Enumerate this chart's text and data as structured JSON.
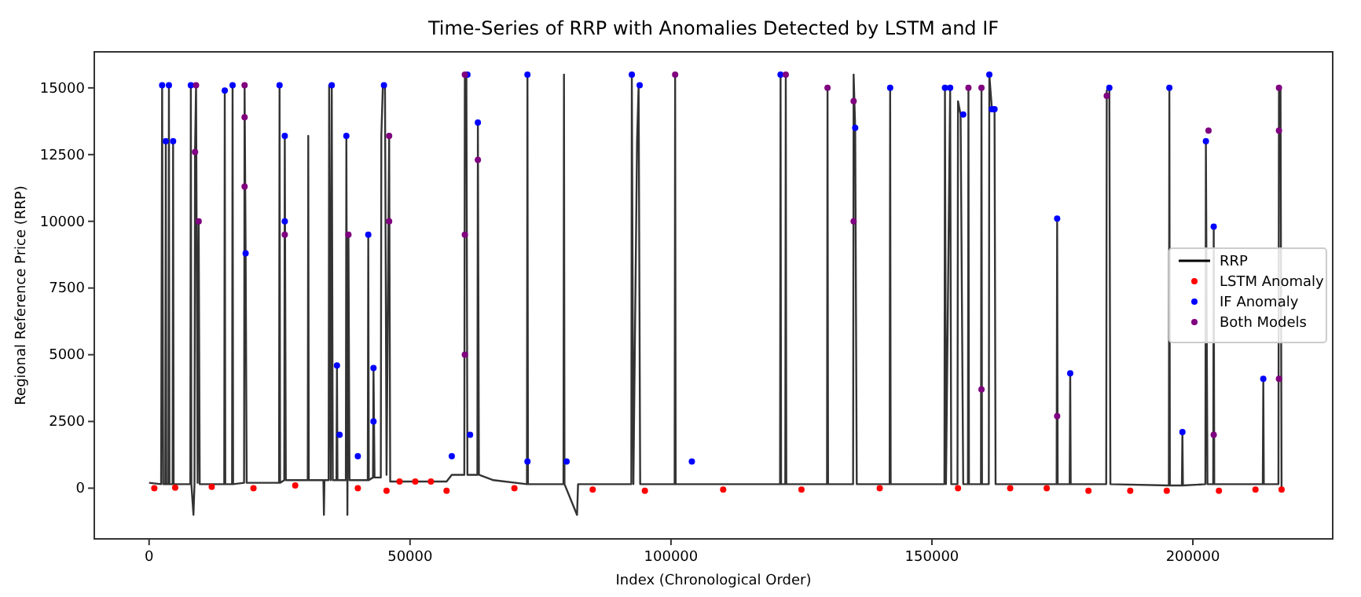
{
  "chart_data": {
    "type": "line",
    "title": "Time-Series of RRP with Anomalies Detected by LSTM and IF",
    "xlabel": "Index (Chronological Order)",
    "ylabel": "Regional Reference Price (RRP)",
    "xlim": [
      -10500,
      226800
    ],
    "xticks": [
      0,
      50000,
      100000,
      150000,
      200000
    ],
    "ylim": [
      -1900,
      16350
    ],
    "yticks": [
      0,
      2500,
      5000,
      7500,
      10000,
      12500,
      15000
    ],
    "legend": "center right",
    "grid": false,
    "series": [
      {
        "name": "RRP",
        "color": "#000000",
        "x": [
          0,
          2300,
          2500,
          2700,
          3100,
          3200,
          3300,
          3700,
          3800,
          3900,
          4500,
          4600,
          4700,
          7900,
          8000,
          8100,
          8500,
          8700,
          8800,
          9000,
          9300,
          9500,
          9700,
          14400,
          14500,
          14600,
          15900,
          16000,
          16100,
          18200,
          18300,
          18500,
          18700,
          24900,
          25000,
          25100,
          25900,
          26000,
          26200,
          30400,
          30500,
          30600,
          33400,
          33500,
          33600,
          34400,
          34500,
          34800,
          35000,
          35200,
          35900,
          36000,
          36100,
          37700,
          37800,
          38000,
          38200,
          38400,
          41900,
          42000,
          42100,
          42900,
          43000,
          43200,
          44400,
          44500,
          44800,
          45200,
          45500,
          46000,
          46200,
          57000,
          58000,
          60400,
          60500,
          60800,
          61000,
          62900,
          63000,
          63200,
          66000,
          72400,
          72500,
          72600,
          79400,
          79500,
          79600,
          82000,
          82200,
          92400,
          92500,
          92800,
          93500,
          93800,
          94100,
          100700,
          100800,
          100900,
          120900,
          121000,
          121100,
          121900,
          122000,
          122100,
          129900,
          130000,
          130100,
          134900,
          135000,
          135300,
          135600,
          141900,
          142000,
          142100,
          152400,
          152500,
          152700,
          153500,
          153700,
          154900,
          155000,
          155500,
          156000,
          156900,
          157000,
          157100,
          159400,
          159500,
          159600,
          160900,
          161000,
          161500,
          162000,
          162200,
          173900,
          174000,
          174100,
          176400,
          176500,
          176600,
          183400,
          183500,
          184000,
          184200,
          195400,
          195500,
          195600,
          197900,
          198000,
          198100,
          202400,
          202500,
          202800,
          203900,
          204000,
          204100,
          213400,
          213500,
          213600,
          216400,
          216500,
          216800,
          217000
        ],
        "values": [
          200,
          150,
          15100,
          150,
          150,
          13000,
          150,
          150,
          15100,
          150,
          150,
          13000,
          150,
          150,
          15100,
          150,
          -1000,
          150,
          12600,
          15100,
          200,
          10000,
          150,
          150,
          14900,
          150,
          150,
          15100,
          150,
          200,
          15100,
          8800,
          200,
          200,
          15100,
          200,
          300,
          13200,
          300,
          300,
          13200,
          300,
          300,
          -1000,
          300,
          300,
          15100,
          300,
          15100,
          300,
          300,
          4600,
          300,
          300,
          13200,
          -1000,
          9500,
          300,
          300,
          9500,
          300,
          400,
          4500,
          400,
          400,
          13200,
          15100,
          15100,
          500,
          13200,
          250,
          250,
          500,
          500,
          15500,
          15500,
          500,
          500,
          13700,
          500,
          300,
          150,
          15500,
          150,
          150,
          15500,
          150,
          -1000,
          150,
          150,
          15500,
          150,
          13000,
          15100,
          150,
          150,
          15500,
          150,
          150,
          15500,
          150,
          150,
          15500,
          150,
          150,
          15000,
          150,
          150,
          15500,
          13500,
          150,
          150,
          15000,
          150,
          150,
          15000,
          150,
          15000,
          150,
          150,
          14500,
          14000,
          150,
          150,
          15000,
          150,
          150,
          15000,
          150,
          150,
          15500,
          14200,
          14200,
          150,
          150,
          10100,
          150,
          150,
          4300,
          150,
          150,
          14900,
          15000,
          150,
          100,
          15000,
          100,
          100,
          2100,
          100,
          150,
          13000,
          150,
          150,
          9800,
          150,
          150,
          4100,
          150,
          150,
          15000,
          15000,
          0
        ]
      },
      {
        "name": "LSTM Anomaly",
        "type": "scatter",
        "color": "#ff0000",
        "marker": "circle",
        "x": [
          1000,
          5000,
          12000,
          20000,
          28000,
          40000,
          45500,
          48000,
          51000,
          54000,
          57000,
          70000,
          85000,
          95000,
          110000,
          125000,
          140000,
          155000,
          165000,
          172000,
          180000,
          188000,
          195000,
          205000,
          212000,
          217000
        ],
        "values": [
          0,
          20,
          50,
          0,
          100,
          0,
          -100,
          250,
          250,
          250,
          -100,
          0,
          -50,
          -100,
          -50,
          -50,
          0,
          0,
          0,
          0,
          -100,
          -100,
          -100,
          -100,
          -50,
          -50
        ]
      },
      {
        "name": "IF Anomaly",
        "type": "scatter",
        "color": "#0000ff",
        "marker": "circle",
        "x": [
          2500,
          3200,
          3800,
          4600,
          8000,
          14500,
          16000,
          18500,
          25000,
          26000,
          26000,
          35000,
          36000,
          36500,
          37800,
          42000,
          43000,
          43000,
          40000,
          45000,
          58000,
          61000,
          61500,
          63000,
          72500,
          72500,
          80000,
          92500,
          94000,
          104000,
          121000,
          135300,
          142000,
          152500,
          153500,
          156000,
          161000,
          161500,
          162000,
          174000,
          176500,
          184000,
          195500,
          198000,
          202500,
          204000,
          213500
        ],
        "values": [
          15100,
          13000,
          15100,
          13000,
          15100,
          14900,
          15100,
          8800,
          15100,
          13200,
          10000,
          15100,
          4600,
          2000,
          13200,
          9500,
          4500,
          2500,
          1200,
          15100,
          1200,
          15500,
          2000,
          13700,
          15500,
          1000,
          1000,
          15500,
          15100,
          1000,
          15500,
          13500,
          15000,
          15000,
          15000,
          14000,
          15500,
          14200,
          14200,
          10100,
          4300,
          15000,
          15000,
          2100,
          13000,
          9800,
          4100
        ]
      },
      {
        "name": "Both Models",
        "type": "scatter",
        "color": "#800080",
        "marker": "circle",
        "x": [
          18300,
          18300,
          18300,
          9000,
          8800,
          9500,
          26000,
          38200,
          46000,
          46000,
          60500,
          60500,
          60500,
          63000,
          100800,
          122000,
          130000,
          135000,
          135000,
          157000,
          159500,
          159500,
          174000,
          183500,
          203000,
          204000,
          216500,
          216500,
          216500
        ],
        "values": [
          15100,
          13900,
          11300,
          15100,
          12600,
          10000,
          9500,
          9500,
          13200,
          10000,
          15500,
          9500,
          5000,
          12300,
          15500,
          15500,
          15000,
          14500,
          10000,
          15000,
          15000,
          3700,
          2700,
          14700,
          13400,
          2000,
          15000,
          13400,
          4100
        ]
      }
    ]
  }
}
